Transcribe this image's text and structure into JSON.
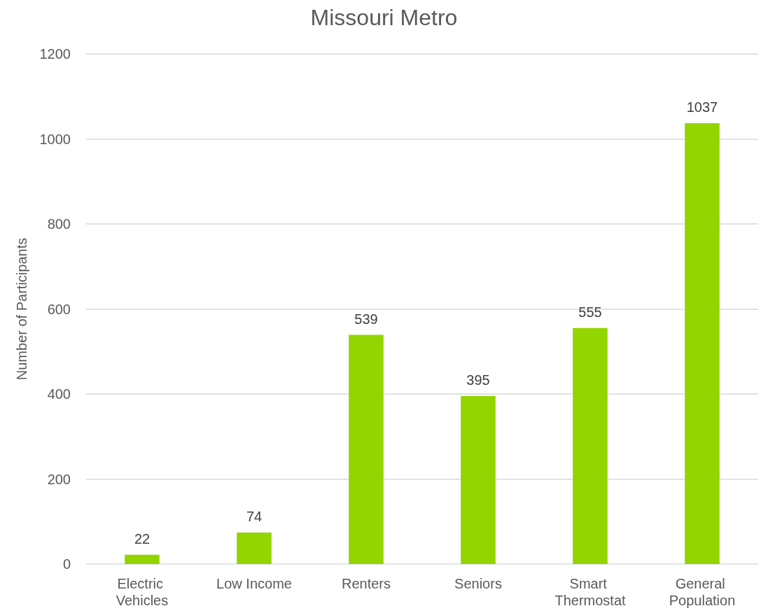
{
  "chart_data": {
    "type": "bar",
    "title": "Missouri Metro",
    "ylabel": "Number of Participants",
    "categories": [
      "Electric Vehicles",
      "Low Income",
      "Renters",
      "Seniors",
      "Smart Thermostat",
      "General Population"
    ],
    "values": [
      22,
      74,
      539,
      395,
      555,
      1037
    ],
    "color": "#92d500",
    "ylim": [
      0,
      1200
    ],
    "yticks": [
      0,
      200,
      400,
      600,
      800,
      1000,
      1200
    ],
    "grid": "y",
    "data_labels": true
  }
}
